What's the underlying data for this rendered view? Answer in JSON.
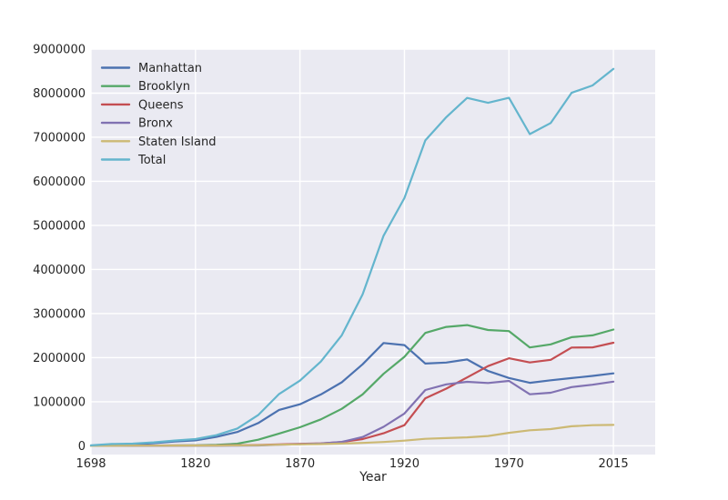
{
  "chart_data": {
    "type": "line",
    "title": "",
    "xlabel": "Year",
    "ylabel": "",
    "grid": true,
    "legend_position": "upper left",
    "ylim": [
      0,
      9000000
    ],
    "yticks": [
      0,
      1000000,
      2000000,
      3000000,
      4000000,
      5000000,
      6000000,
      7000000,
      8000000,
      9000000
    ],
    "xtick_positions": [
      0,
      5,
      10,
      15,
      20,
      25
    ],
    "xtick_labels": [
      "1698",
      "1820",
      "1870",
      "1920",
      "1970",
      "2015"
    ],
    "x": [
      1698,
      1771,
      1790,
      1800,
      1810,
      1820,
      1830,
      1840,
      1850,
      1860,
      1870,
      1880,
      1890,
      1900,
      1910,
      1920,
      1930,
      1940,
      1950,
      1960,
      1970,
      1980,
      1990,
      2000,
      2010,
      2015
    ],
    "series": [
      {
        "name": "Manhattan",
        "color": "#4C72B0",
        "values": [
          4937,
          21863,
          33131,
          60515,
          96373,
          123706,
          202589,
          312710,
          515547,
          813669,
          942292,
          1164673,
          1441216,
          1850093,
          2331542,
          2284103,
          1867312,
          1889924,
          1960101,
          1698281,
          1539233,
          1428285,
          1487536,
          1537195,
          1585873,
          1644518
        ]
      },
      {
        "name": "Brooklyn",
        "color": "#55A868",
        "values": [
          2017,
          3623,
          4549,
          5740,
          8303,
          11187,
          20535,
          47613,
          138882,
          279122,
          419921,
          599495,
          838547,
          1166582,
          1634351,
          2018356,
          2560401,
          2698285,
          2738175,
          2627319,
          2602012,
          2230936,
          2300664,
          2465326,
          2504700,
          2636735
        ]
      },
      {
        "name": "Queens",
        "color": "#C44E52",
        "values": [
          961,
          10980,
          6159,
          6642,
          7444,
          8246,
          9049,
          14480,
          18593,
          32903,
          45468,
          56559,
          87050,
          152999,
          284041,
          469042,
          1079129,
          1297634,
          1550849,
          1809578,
          1986473,
          1891325,
          1951598,
          2229379,
          2230722,
          2339150
        ]
      },
      {
        "name": "Bronx",
        "color": "#8172B2",
        "values": [
          1063,
          1761,
          1781,
          1755,
          2267,
          2782,
          3023,
          5346,
          8032,
          23593,
          37393,
          51980,
          88908,
          200507,
          430980,
          732016,
          1265258,
          1394711,
          1451277,
          1424815,
          1471701,
          1168972,
          1203789,
          1332650,
          1385108,
          1455444
        ]
      },
      {
        "name": "Staten Island",
        "color": "#CCB974",
        "values": [
          727,
          2847,
          3827,
          4563,
          5347,
          6135,
          7082,
          10965,
          15061,
          25492,
          33029,
          38991,
          51693,
          67021,
          85969,
          116531,
          158346,
          174441,
          191555,
          221991,
          295443,
          352121,
          378977,
          443728,
          468730,
          474558
        ]
      },
      {
        "name": "Total",
        "color": "#64B5CD",
        "values": [
          9705,
          41074,
          49447,
          79215,
          119734,
          152056,
          242278,
          391114,
          696115,
          1174779,
          1478103,
          1911698,
          2507414,
          3437202,
          4766883,
          5620048,
          6930446,
          7454995,
          7891957,
          7781984,
          7894862,
          7071639,
          7322564,
          8008278,
          8175133,
          8550405
        ]
      }
    ],
    "style": {
      "axes_background": "#EAEAF2",
      "grid_color": "#FFFFFF",
      "text_color": "#262626"
    }
  }
}
